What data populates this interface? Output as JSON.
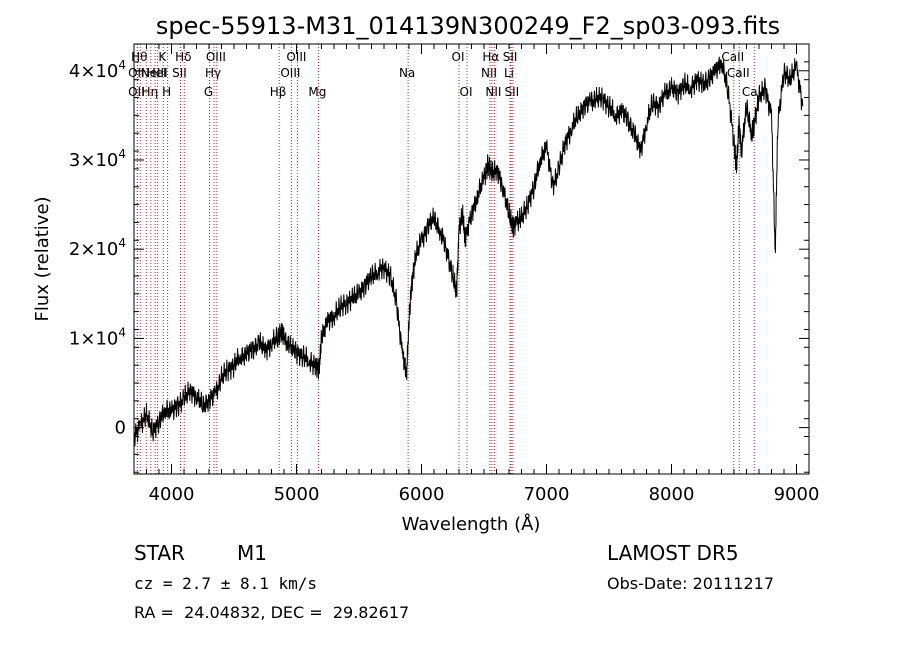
{
  "chart_data": {
    "type": "line",
    "title": "spec-55913-M31_014139N300249_F2_sp03-093.fits",
    "xlabel": "Wavelength (Å)",
    "ylabel": "Flux (relative)",
    "xlim": [
      3700,
      9100
    ],
    "ylim": [
      -5200,
      43000
    ],
    "x_ticks": [
      4000,
      5000,
      6000,
      7000,
      8000,
      9000
    ],
    "x_tick_labels": [
      "4000",
      "5000",
      "6000",
      "7000",
      "8000",
      "9000"
    ],
    "y_ticks": [
      {
        "value": 0,
        "base": "0",
        "exp": ""
      },
      {
        "value": 10000,
        "base": "1×10",
        "exp": "4"
      },
      {
        "value": 20000,
        "base": "2×10",
        "exp": "4"
      },
      {
        "value": 30000,
        "base": "3×10",
        "exp": "4"
      },
      {
        "value": 40000,
        "base": "4×10",
        "exp": "4"
      }
    ],
    "series": [
      {
        "color": "#000000",
        "x": [
          3700,
          3750,
          3800,
          3850,
          3900,
          3950,
          4000,
          4050,
          4100,
          4150,
          4200,
          4250,
          4300,
          4350,
          4400,
          4450,
          4500,
          4550,
          4600,
          4650,
          4700,
          4750,
          4800,
          4850,
          4880,
          4900,
          4950,
          5000,
          5050,
          5100,
          5150,
          5180,
          5200,
          5250,
          5300,
          5350,
          5400,
          5450,
          5500,
          5550,
          5600,
          5650,
          5700,
          5750,
          5800,
          5850,
          5880,
          5900,
          5920,
          5950,
          6000,
          6050,
          6100,
          6150,
          6200,
          6250,
          6280,
          6300,
          6330,
          6350,
          6400,
          6450,
          6500,
          6530,
          6560,
          6600,
          6650,
          6700,
          6730,
          6760,
          6800,
          6850,
          6900,
          6950,
          7000,
          7050,
          7100,
          7150,
          7200,
          7250,
          7300,
          7350,
          7400,
          7450,
          7500,
          7550,
          7600,
          7650,
          7700,
          7750,
          7800,
          7850,
          7900,
          7950,
          8000,
          8050,
          8100,
          8150,
          8200,
          8250,
          8300,
          8350,
          8400,
          8450,
          8500,
          8520,
          8540,
          8560,
          8600,
          8640,
          8660,
          8700,
          8750,
          8800,
          8830,
          8850,
          8900,
          8950,
          9000,
          9050
        ],
        "y": [
          -1000,
          200,
          1500,
          -500,
          700,
          2000,
          1800,
          2500,
          3200,
          4200,
          3500,
          2500,
          3000,
          3800,
          5500,
          6500,
          7000,
          8000,
          8200,
          8800,
          9500,
          8700,
          9500,
          10000,
          11000,
          10000,
          9000,
          8500,
          8000,
          7500,
          7000,
          6500,
          10000,
          12000,
          12500,
          13500,
          14000,
          14500,
          15000,
          16000,
          17000,
          17500,
          18000,
          17000,
          14000,
          8000,
          6000,
          12000,
          16000,
          19000,
          21000,
          22500,
          23500,
          22000,
          20000,
          17000,
          15000,
          22000,
          24000,
          21000,
          24000,
          26000,
          28000,
          29500,
          28500,
          29000,
          27000,
          24000,
          22500,
          23000,
          23500,
          25000,
          27000,
          30000,
          31500,
          27000,
          29000,
          32000,
          33500,
          35000,
          36000,
          36500,
          36800,
          37000,
          36000,
          35000,
          35500,
          34500,
          33000,
          31000,
          34000,
          36500,
          36000,
          37500,
          38000,
          37500,
          38500,
          38000,
          39000,
          38500,
          39000,
          40000,
          41000,
          38000,
          32000,
          29000,
          34000,
          31000,
          36000,
          33000,
          34000,
          37000,
          38000,
          35000,
          19500,
          34000,
          40000,
          39000,
          40500,
          36000
        ]
      }
    ],
    "line_markers": [
      {
        "wavelength": 3750,
        "row": 0,
        "label": "Hθ"
      },
      {
        "wavelength": 3727,
        "row": 1,
        "label": "OII"
      },
      {
        "wavelength": 3727,
        "row": 2,
        "label": "OII"
      },
      {
        "wavelength": 3798,
        "row": 0,
        "label": ""
      },
      {
        "wavelength": 3835,
        "row": 2,
        "label": "Hη"
      },
      {
        "wavelength": 3869,
        "row": 1,
        "label": "NeIII"
      },
      {
        "wavelength": 3889,
        "row": 1,
        "label": "HeI"
      },
      {
        "wavelength": 3934,
        "row": 0,
        "label": "K"
      },
      {
        "wavelength": 3969,
        "row": 2,
        "label": "H"
      },
      {
        "wavelength": 4072,
        "row": 1,
        "label": "SII"
      },
      {
        "wavelength": 4102,
        "row": 0,
        "label": "Hδ"
      },
      {
        "wavelength": 4304,
        "row": 2,
        "label": "G"
      },
      {
        "wavelength": 4340,
        "row": 1,
        "label": "Hγ"
      },
      {
        "wavelength": 4363,
        "row": 0,
        "label": "OIII"
      },
      {
        "wavelength": 4861,
        "row": 2,
        "label": "Hβ"
      },
      {
        "wavelength": 4959,
        "row": 1,
        "label": "OIII"
      },
      {
        "wavelength": 5007,
        "row": 0,
        "label": "OIII"
      },
      {
        "wavelength": 5175,
        "row": 2,
        "label": "Mg"
      },
      {
        "wavelength": 5893,
        "row": 1,
        "label": "Na"
      },
      {
        "wavelength": 6300,
        "row": 0,
        "label": "OI"
      },
      {
        "wavelength": 6364,
        "row": 2,
        "label": "OI"
      },
      {
        "wavelength": 6548,
        "row": 1,
        "label": "NII"
      },
      {
        "wavelength": 6563,
        "row": 0,
        "label": "Hα"
      },
      {
        "wavelength": 6583,
        "row": 2,
        "label": "NII"
      },
      {
        "wavelength": 6708,
        "row": 1,
        "label": "Li"
      },
      {
        "wavelength": 6717,
        "row": 0,
        "label": "SII"
      },
      {
        "wavelength": 6731,
        "row": 2,
        "label": "SII"
      },
      {
        "wavelength": 8498,
        "row": 0,
        "label": "CaII"
      },
      {
        "wavelength": 8542,
        "row": 1,
        "label": "CaII"
      },
      {
        "wavelength": 8662,
        "row": 2,
        "label": "CaII"
      }
    ]
  },
  "footer": {
    "class_label": "STAR",
    "subclass": "M1",
    "survey": "LAMOST DR5",
    "cz_text": "cz = 2.7 ± 8.1 km/s",
    "obs_date": "Obs-Date: 20111217",
    "coords": "RA =  24.04832, DEC =  29.82617"
  },
  "colors": {
    "line_marker": "#b22222",
    "spectrum": "#000000",
    "axes": "#000000"
  }
}
